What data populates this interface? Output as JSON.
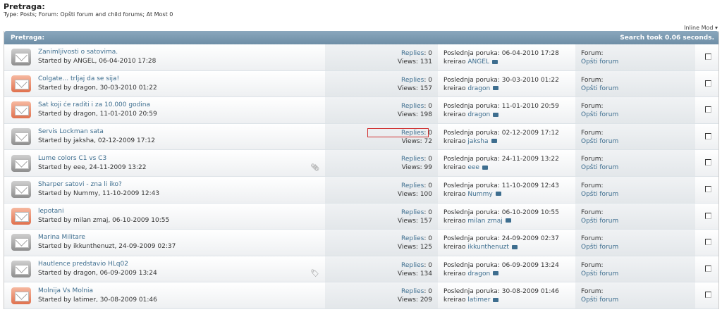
{
  "page": {
    "title": "Pretraga:",
    "subtitle": "Type: Posts; Forum: Opšti forum and child forums; At Most 0",
    "inline_mod": "Inline Mod ▾"
  },
  "table": {
    "header": "Pretraga:",
    "search_time": "Search took 0.06 seconds.",
    "labels": {
      "replies": "Replies",
      "views": "Views",
      "last_post": "Poslednja poruka",
      "by": "kreirao",
      "forum": "Forum:"
    },
    "rows": [
      {
        "title": "Zanimljivosti o satovima.",
        "started": "Started by ANGEL, 06-04-2010 17:28",
        "replies": ": 0",
        "views": ": 131",
        "last": ": 06-04-2010 17:28",
        "user": "ANGEL",
        "forum": "Opšti forum",
        "icon": "gray"
      },
      {
        "title": "Colgate... trljaj da se sija!",
        "started": "Started by dragon, 30-03-2010 01:22",
        "replies": ": 0",
        "views": ": 157",
        "last": ": 30-03-2010 01:22",
        "user": "dragon",
        "forum": "Opšti forum",
        "icon": "orange"
      },
      {
        "title": "Sat koji će raditi i za 10.000 godina",
        "started": "Started by dragon, 11-01-2010 20:59",
        "replies": ": 0",
        "views": ": 198",
        "last": ": 11-01-2010 20:59",
        "user": "dragon",
        "forum": "Opšti forum",
        "icon": "orange"
      },
      {
        "title": "Servis Lockman sata",
        "started": "Started by jaksha, 02-12-2009 17:12",
        "replies": ": 0",
        "views": ": 72",
        "last": ": 02-12-2009 17:12",
        "user": "jaksha",
        "forum": "Opšti forum",
        "icon": "gray"
      },
      {
        "title": "Lume colors C1 vs C3",
        "started": "Started by eee, 24-11-2009 13:22",
        "replies": ": 0",
        "views": ": 99",
        "last": ": 24-11-2009 13:22",
        "user": "eee",
        "forum": "Opšti forum",
        "icon": "gray"
      },
      {
        "title": "Sharper satovi - zna li iko?",
        "started": "Started by Nummy, 11-10-2009 12:43",
        "replies": ": 0",
        "views": ": 100",
        "last": ": 11-10-2009 12:43",
        "user": "Nummy",
        "forum": "Opšti forum",
        "icon": "gray"
      },
      {
        "title": "lepotani",
        "started": "Started by milan zmaj, 06-10-2009 10:55",
        "replies": ": 0",
        "views": ": 157",
        "last": ": 06-10-2009 10:55",
        "user": "milan zmaj",
        "forum": "Opšti forum",
        "icon": "orange"
      },
      {
        "title": "Marina Militare",
        "started": "Started by ikkunthenuzt, 24-09-2009 02:37",
        "replies": ": 0",
        "views": ": 125",
        "last": ": 24-09-2009 02:37",
        "user": "ikkunthenuzt",
        "forum": "Opšti forum",
        "icon": "gray"
      },
      {
        "title": "Hautlence predstavio HLq02",
        "started": "Started by dragon, 06-09-2009 13:24",
        "replies": ": 0",
        "views": ": 134",
        "last": ": 06-09-2009 13:24",
        "user": "dragon",
        "forum": "Opšti forum",
        "icon": "gray"
      },
      {
        "title": "Molnija Vs Molnia",
        "started": "Started by latimer, 30-08-2009 01:46",
        "replies": ": 0",
        "views": ": 209",
        "last": ": 30-08-2009 01:46",
        "user": "latimer",
        "forum": "Opšti forum",
        "icon": "orange"
      }
    ]
  }
}
